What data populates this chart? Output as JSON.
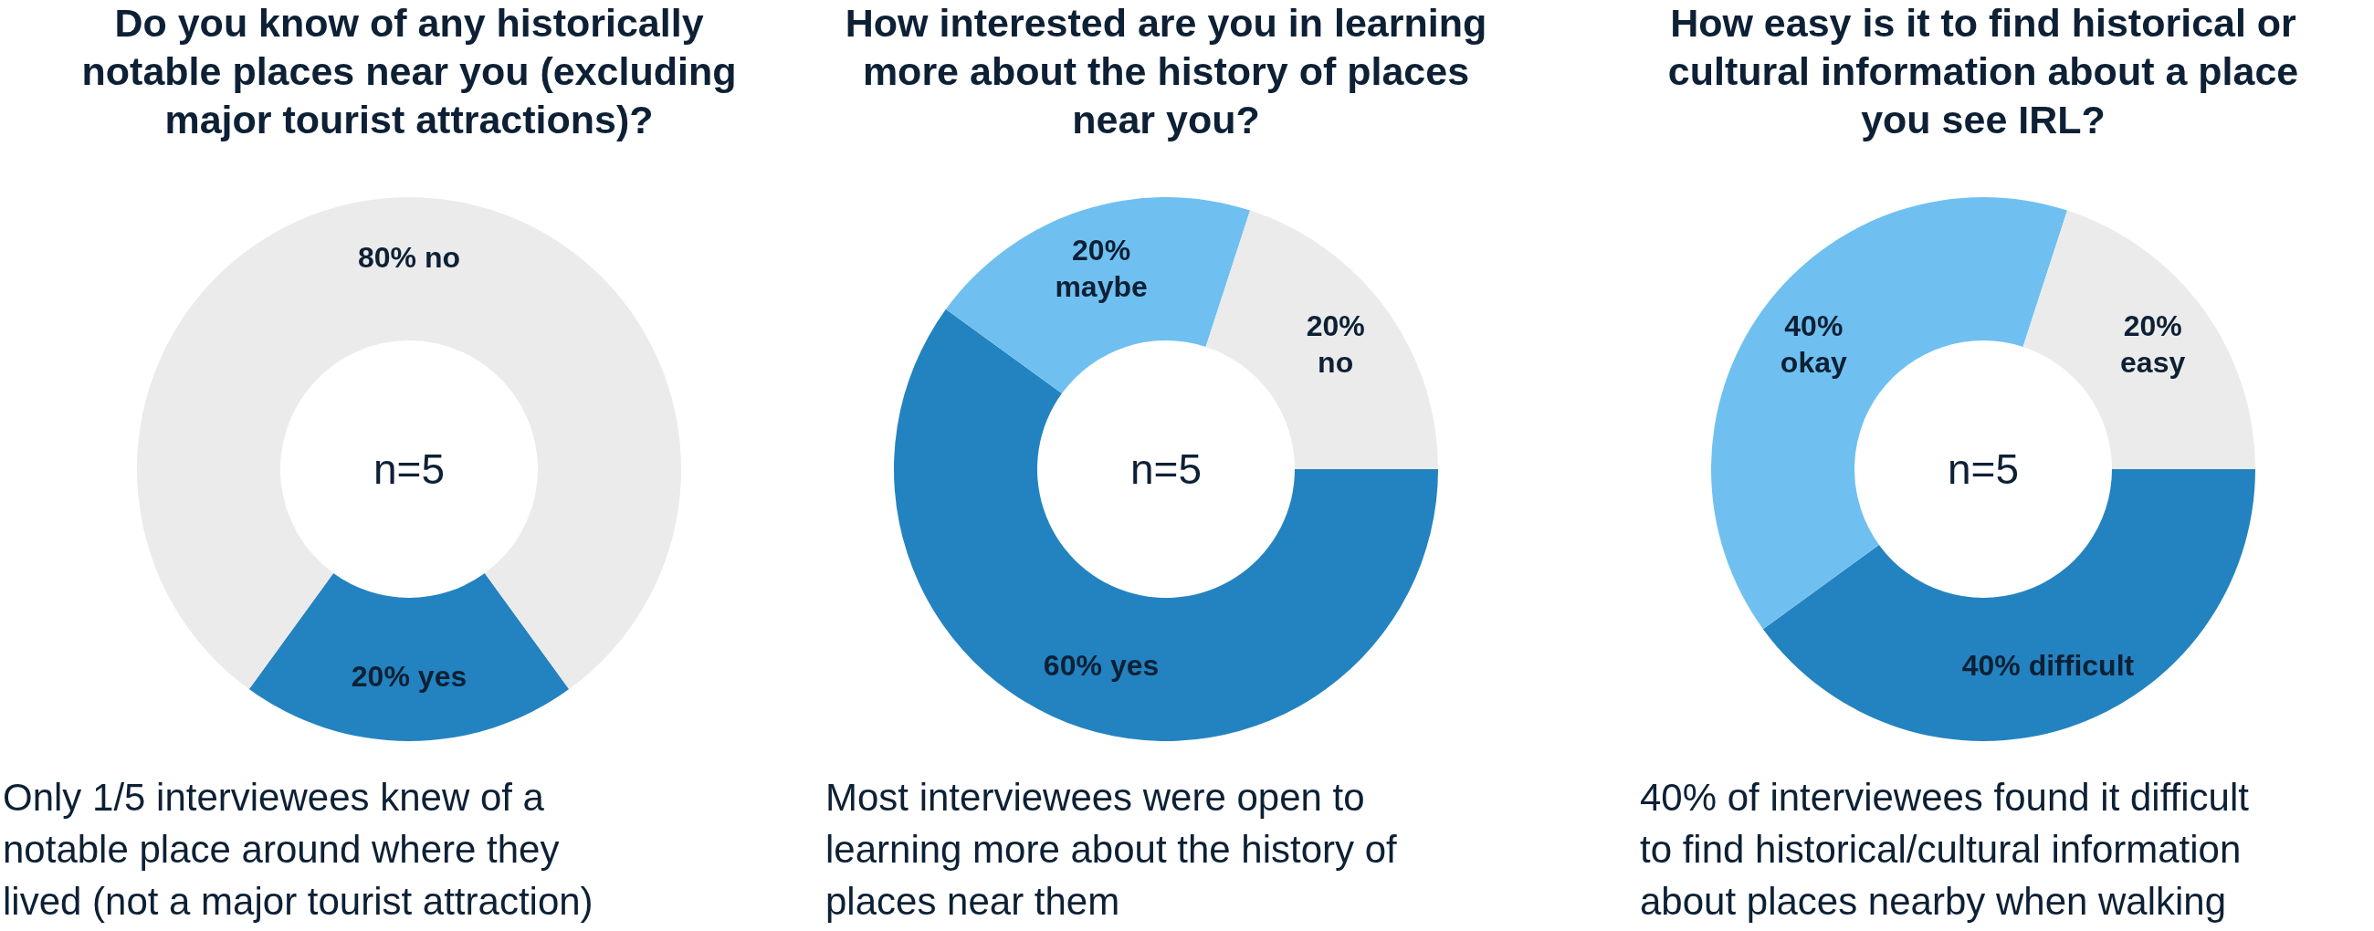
{
  "chart_data": [
    {
      "type": "donut",
      "title": "Do you know of any historically\nnotable places near you (excluding\nmajor tourist attractions)?",
      "categories": [
        "yes",
        "no"
      ],
      "values": [
        20,
        80
      ],
      "colors": [
        "#2383c0",
        "#ebebeb"
      ],
      "value_labels": [
        "20%",
        "80%"
      ],
      "annotations": [
        "n=5",
        "Only 1/5 interviewees knew of a\nnotable place around where they\nlived (not a major tourist attraction)"
      ]
    },
    {
      "type": "donut",
      "title": "How interested are you in learning\nmore about the history of places\nnear you?",
      "categories": [
        "yes",
        "maybe",
        "no"
      ],
      "values": [
        60,
        20,
        20
      ],
      "colors": [
        "#2383c0",
        "#6fc0f0",
        "#ebebeb"
      ],
      "value_labels": [
        "60%",
        "20%",
        "20%"
      ],
      "annotations": [
        "n=5",
        "Most interviewees were open to\nlearning more about the history of\nplaces near them"
      ]
    },
    {
      "type": "donut",
      "title": "How easy is it to find historical or\ncultural information about a place\nyou see IRL?",
      "categories": [
        "difficult",
        "okay",
        "easy"
      ],
      "values": [
        40,
        40,
        20
      ],
      "colors": [
        "#2383c0",
        "#6fc0f0",
        "#ebebeb"
      ],
      "value_labels": [
        "40%",
        "40%",
        "20%"
      ],
      "annotations": [
        "n=5",
        "40% of interviewees found it difficult\nto find historical/cultural information\nabout places nearby when walking"
      ]
    }
  ]
}
